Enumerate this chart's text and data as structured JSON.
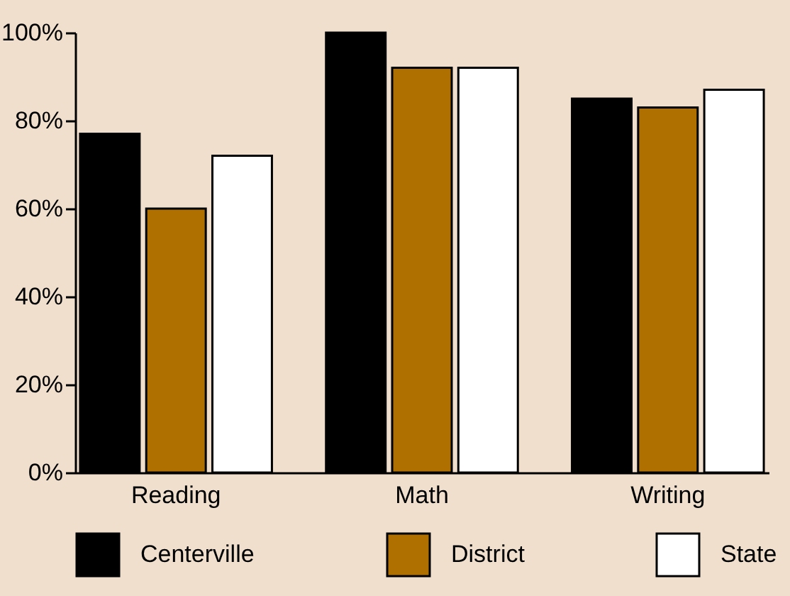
{
  "chart_data": {
    "type": "bar",
    "categories": [
      "Reading",
      "Math",
      "Writing"
    ],
    "series": [
      {
        "name": "Centerville",
        "color": "#000000",
        "values": [
          77,
          100,
          85
        ]
      },
      {
        "name": "District",
        "color": "#b07000",
        "values": [
          60,
          92,
          83
        ]
      },
      {
        "name": "State",
        "color": "#ffffff",
        "values": [
          72,
          92,
          87
        ]
      }
    ],
    "ylim": [
      0,
      100
    ],
    "yticks": [
      {
        "value": 0,
        "label": "0%"
      },
      {
        "value": 20,
        "label": "20%"
      },
      {
        "value": 40,
        "label": "40%"
      },
      {
        "value": 60,
        "label": "60%"
      },
      {
        "value": 80,
        "label": "80%"
      },
      {
        "value": 100,
        "label": "100%"
      }
    ],
    "grid": false,
    "legend": "bottom"
  }
}
